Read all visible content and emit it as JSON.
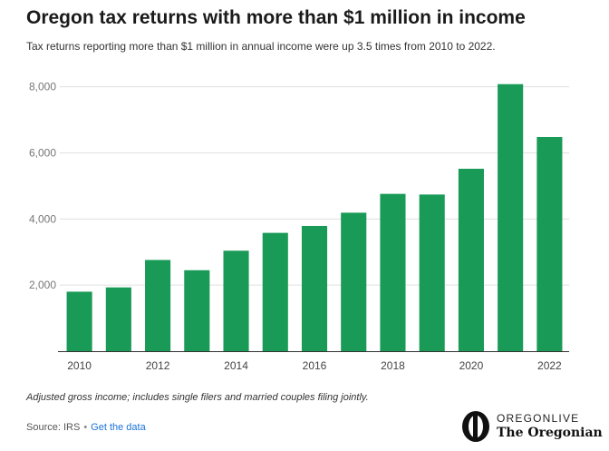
{
  "header": {
    "title": "Oregon tax returns with more than $1 million in income",
    "subtitle": "Tax returns reporting more than $1 million in annual income were up 3.5 times from 2010 to 2022."
  },
  "footer": {
    "note": "Adjusted gross income; includes single filers and married couples filing jointly.",
    "source_label": "Source: IRS",
    "separator": "•",
    "data_link": "Get the data"
  },
  "logo": {
    "top": "OREGONLIVE",
    "bottom": "The Oregonian"
  },
  "colors": {
    "bar": "#199a57",
    "grid": "#e0e0e0",
    "tick_text": "#777777",
    "axis": "#333333"
  },
  "chart_data": {
    "type": "bar",
    "title": "",
    "xlabel": "",
    "ylabel": "",
    "ylim": [
      0,
      8100
    ],
    "y_ticks": [
      {
        "value": 2000,
        "label": "2,000"
      },
      {
        "value": 4000,
        "label": "4,000"
      },
      {
        "value": 6000,
        "label": "6,000"
      },
      {
        "value": 8000,
        "label": "8,000"
      }
    ],
    "categories": [
      "2010",
      "2011",
      "2012",
      "2013",
      "2014",
      "2015",
      "2016",
      "2017",
      "2018",
      "2019",
      "2020",
      "2021",
      "2022"
    ],
    "values": [
      1800,
      1930,
      2760,
      2450,
      3040,
      3580,
      3790,
      4190,
      4760,
      4740,
      5520,
      8080,
      6480
    ],
    "x_tick_labels": [
      "2010",
      "2012",
      "2014",
      "2016",
      "2018",
      "2020",
      "2022"
    ],
    "grid": true
  }
}
